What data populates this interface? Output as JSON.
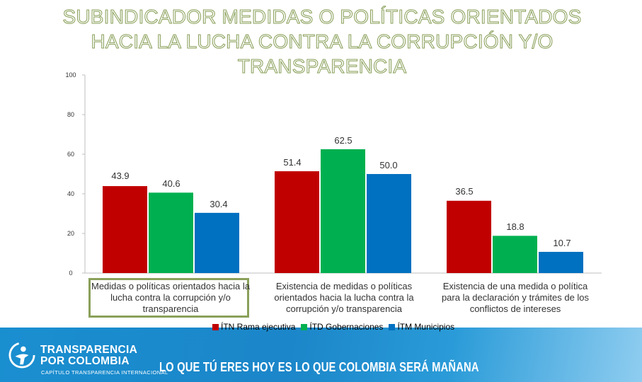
{
  "chart_data": {
    "type": "bar",
    "title_lines": [
      "SUBINDICADOR MEDIDAS  O POLÍTICAS ORIENTADOS",
      "HACIA LA LUCHA CONTRA LA CORRUPCIÓN Y/O",
      "TRANSPARENCIA"
    ],
    "categories": [
      "Medidas o políticas orientados hacia la lucha contra la corrupción y/o transparencia",
      "Existencia de medidas o políticas orientados hacia la lucha contra la corrupción y/o transparencia",
      "Existencia de una medida o política para la declaración y trámites de los conflictos de intereses"
    ],
    "category_lines": [
      [
        "Medidas o políticas orientados hacia la",
        "lucha contra la corrupción y/o",
        "transparencia"
      ],
      [
        "Existencia de medidas o políticas",
        "orientados hacia la lucha contra la",
        "corrupción y/o transparencia"
      ],
      [
        "Existencia de una medida o política",
        "para la declaración y trámites de los",
        "conflictos de intereses"
      ]
    ],
    "series": [
      {
        "name": "ÍTN Rama ejecutiva",
        "color": "#c00000",
        "values": [
          43.9,
          51.4,
          36.5
        ],
        "labels": [
          "43.9",
          "51.4",
          "36.5"
        ]
      },
      {
        "name": "ÍTD Gobernaciones",
        "color": "#00b050",
        "values": [
          40.6,
          62.5,
          18.8
        ],
        "labels": [
          "40.6",
          "62.5",
          "18.8"
        ]
      },
      {
        "name": "ÍTM Municipios",
        "color": "#0070c0",
        "values": [
          30.4,
          50.0,
          10.7
        ],
        "labels": [
          "30.4",
          "50.0",
          "10.7"
        ]
      }
    ],
    "yticks": [
      0,
      20,
      40,
      60,
      80,
      100
    ],
    "ylim": [
      0,
      100
    ],
    "legend_position": "bottom"
  },
  "footer": {
    "org_line1": "TRANSPARENCIA",
    "org_line2": "POR COLOMBIA",
    "org_sub": "CAPÍTULO TRANSPARENCIA INTERNACIONAL",
    "slogan": "LO QUE TÚ ERES HOY ES LO QUE COLOMBIA SERÁ MAÑANA",
    "logo_icon": "tpc-logo-icon"
  }
}
